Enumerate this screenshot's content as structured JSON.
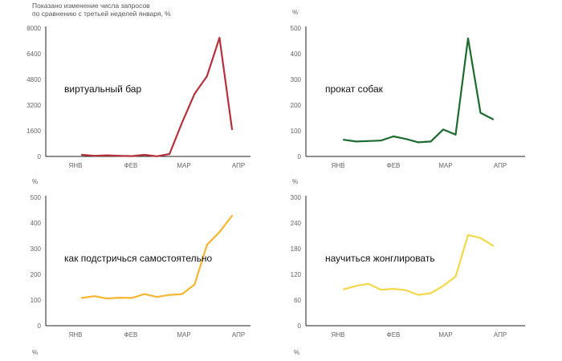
{
  "note": {
    "line1": "Показано изменение числа запросов",
    "line2": "по сравнению с третьей неделей января, %"
  },
  "chart_data": [
    {
      "type": "line",
      "title": "виртуальный бар",
      "unit": "",
      "color": "#b5303a",
      "ylim": [
        0,
        8000
      ],
      "yticks": [
        0,
        1600,
        3200,
        4800,
        6400,
        8000
      ],
      "xticks": [
        "ЯНВ",
        "ФЕВ",
        "МАР",
        "АПР"
      ],
      "values": [
        100,
        40,
        70,
        40,
        20,
        100,
        10,
        150,
        2100,
        3900,
        5000,
        7400,
        1700
      ]
    },
    {
      "type": "line",
      "title": "прокат собак",
      "unit": "%",
      "color": "#1d6b2e",
      "ylim": [
        0,
        500
      ],
      "yticks": [
        0,
        100,
        200,
        300,
        400,
        500
      ],
      "xticks": [
        "ЯНВ",
        "ФЕВ",
        "МАР",
        "АПР"
      ],
      "values": [
        65,
        58,
        60,
        62,
        78,
        68,
        55,
        58,
        105,
        85,
        460,
        170,
        145
      ]
    },
    {
      "type": "line",
      "title": "как подстричься самостоятельно",
      "unit": "%",
      "color": "#f7b531",
      "ylim": [
        0,
        500
      ],
      "yticks": [
        0,
        100,
        200,
        300,
        400,
        500
      ],
      "xticks": [
        "ЯНВ",
        "ФЕВ",
        "МАР",
        "АПР"
      ],
      "values": [
        108,
        115,
        106,
        109,
        108,
        123,
        112,
        120,
        123,
        160,
        315,
        365,
        428
      ]
    },
    {
      "type": "line",
      "title": "научиться жонглировать",
      "unit": "%",
      "color": "#f5d84a",
      "ylim": [
        0,
        300
      ],
      "yticks": [
        0,
        60,
        120,
        180,
        240,
        300
      ],
      "xticks": [
        "ЯНВ",
        "ФЕВ",
        "МАР",
        "АПР"
      ],
      "values": [
        85,
        93,
        98,
        84,
        86,
        83,
        72,
        76,
        93,
        115,
        212,
        205,
        187
      ]
    }
  ],
  "bottom_units": [
    "%",
    "%"
  ]
}
